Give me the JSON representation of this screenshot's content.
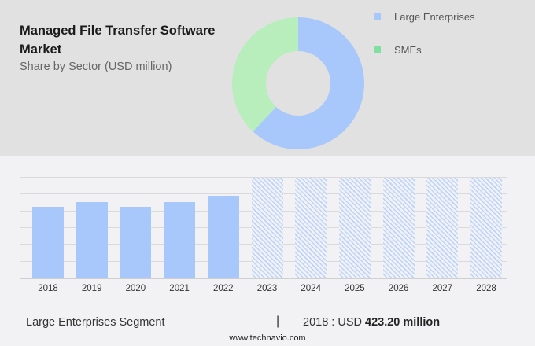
{
  "header": {
    "title": "Managed File Transfer Software Market",
    "subtitle": "Share by Sector (USD million)"
  },
  "legend": [
    {
      "label": "Large Enterprises",
      "color": "#a8c8fb"
    },
    {
      "label": "SMEs",
      "color": "#7fe0a0"
    }
  ],
  "footer": {
    "segment": "Large Enterprises Segment",
    "separator": "|",
    "value_prefix": "2018 : USD",
    "value_bold": "423.20 million",
    "url": "www.technavio.com"
  },
  "chart_data": [
    {
      "type": "pie",
      "title": "Share by Sector (USD million)",
      "categories": [
        "Large Enterprises",
        "SMEs"
      ],
      "values": [
        62,
        38
      ],
      "unit": "percent (estimated)",
      "colors": [
        "#a8c8fb",
        "#b8edbc"
      ],
      "style": "donut",
      "legend_position": "right"
    },
    {
      "type": "bar",
      "title": "Large Enterprises Segment",
      "categories": [
        "2018",
        "2019",
        "2020",
        "2021",
        "2022",
        "2023",
        "2024",
        "2025",
        "2026",
        "2027",
        "2028"
      ],
      "values": [
        423.2,
        451,
        423,
        451,
        488,
        null,
        null,
        null,
        null,
        null,
        null
      ],
      "forecast_categories": [
        "2023",
        "2024",
        "2025",
        "2026",
        "2027",
        "2028"
      ],
      "xlabel": "",
      "ylabel": "USD million",
      "ylim": [
        0,
        600
      ],
      "grid": true,
      "annotation": "2018 : USD 423.20 million"
    }
  ]
}
